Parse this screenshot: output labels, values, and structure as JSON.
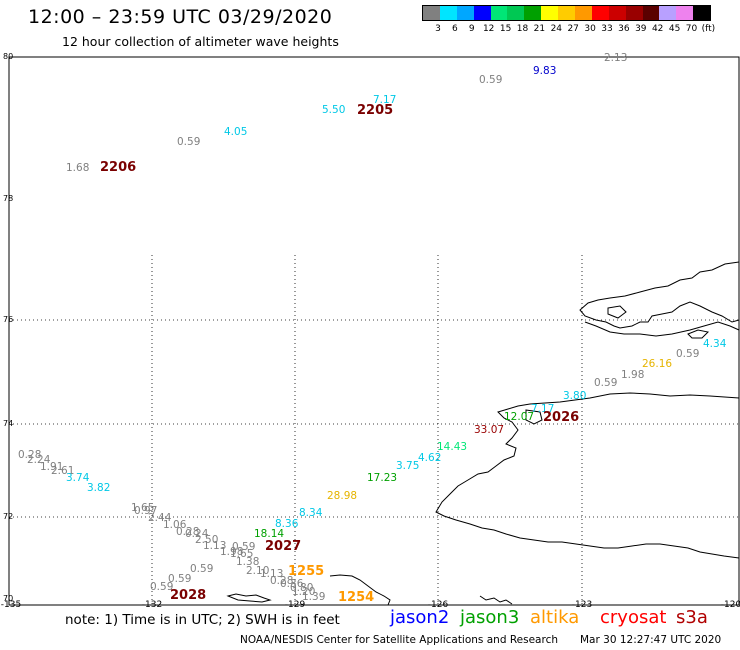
{
  "header": {
    "title": "12:00 – 23:59 UTC 03/29/2020",
    "subtitle": "12 hour collection of altimeter wave heights"
  },
  "legend": {
    "colors": [
      "#808080",
      "#00e5ff",
      "#00a7ff",
      "#0000ff",
      "#00e676",
      "#00c853",
      "#00a000",
      "#ffff00",
      "#ffcc00",
      "#ff9900",
      "#ff0000",
      "#cc0000",
      "#990000",
      "#5a0000",
      "#b8a0ff",
      "#ee82ee",
      "#000000"
    ],
    "labels": [
      "3",
      "6",
      "9",
      "12",
      "15",
      "18",
      "21",
      "24",
      "27",
      "30",
      "33",
      "36",
      "39",
      "42",
      "45",
      "70",
      "(ft)"
    ]
  },
  "axes": {
    "lat_labels": [
      "80",
      "78",
      "76",
      "74",
      "72",
      "70"
    ],
    "lon_labels": [
      "-135",
      "-132",
      "-129",
      "-126",
      "-123",
      "-120"
    ]
  },
  "wave_labels": [
    {
      "t": "2.13",
      "c": "#808080"
    },
    {
      "t": "9.83",
      "c": "#0000cc"
    },
    {
      "t": "0.59",
      "c": "#808080"
    },
    {
      "t": "7.17",
      "c": "#00c8e6"
    },
    {
      "t": "5.50",
      "c": "#00c8e6"
    },
    {
      "t": "4.05",
      "c": "#00c8e6"
    },
    {
      "t": "0.59",
      "c": "#808080"
    },
    {
      "t": "1.68",
      "c": "#808080"
    },
    {
      "t": "4.34",
      "c": "#00c8e6"
    },
    {
      "t": "0.59",
      "c": "#808080"
    },
    {
      "t": "26.16",
      "c": "#e6b400"
    },
    {
      "t": "1.98",
      "c": "#808080"
    },
    {
      "t": "0.59",
      "c": "#808080"
    },
    {
      "t": "3.80",
      "c": "#00c8e6"
    },
    {
      "t": "7.17",
      "c": "#00c8e6"
    },
    {
      "t": "12.07",
      "c": "#00a000"
    },
    {
      "t": "33.07",
      "c": "#990000"
    },
    {
      "t": "14.43",
      "c": "#00e676"
    },
    {
      "t": "4.62",
      "c": "#00c8e6"
    },
    {
      "t": "3.75",
      "c": "#00c8e6"
    },
    {
      "t": "17.23",
      "c": "#00a000"
    },
    {
      "t": "28.98",
      "c": "#e6b400"
    },
    {
      "t": "8.34",
      "c": "#00c8e6"
    },
    {
      "t": "8.36",
      "c": "#00c8e6"
    },
    {
      "t": "18.14",
      "c": "#00a000"
    },
    {
      "t": "0.28",
      "c": "#808080"
    },
    {
      "t": "2.24",
      "c": "#808080"
    },
    {
      "t": "1.91",
      "c": "#808080"
    },
    {
      "t": "2.61",
      "c": "#808080"
    },
    {
      "t": "3.74",
      "c": "#00c8e6"
    },
    {
      "t": "3.82",
      "c": "#00c8e6"
    },
    {
      "t": "1.65",
      "c": "#808080"
    },
    {
      "t": "0.97",
      "c": "#808080"
    },
    {
      "t": "2.44",
      "c": "#808080"
    },
    {
      "t": "1.06",
      "c": "#808080"
    },
    {
      "t": "0.28",
      "c": "#808080"
    },
    {
      "t": "0.24",
      "c": "#808080"
    },
    {
      "t": "2.50",
      "c": "#808080"
    },
    {
      "t": "1.13",
      "c": "#808080"
    },
    {
      "t": "0.59",
      "c": "#808080"
    },
    {
      "t": "1.98",
      "c": "#808080"
    },
    {
      "t": "1.65",
      "c": "#808080"
    },
    {
      "t": "1.38",
      "c": "#808080"
    },
    {
      "t": "2.10",
      "c": "#808080"
    },
    {
      "t": "1.13",
      "c": "#808080"
    },
    {
      "t": "0.59",
      "c": "#808080"
    },
    {
      "t": "0.59",
      "c": "#808080"
    },
    {
      "t": "0.59",
      "c": "#808080"
    },
    {
      "t": "0.28",
      "c": "#808080"
    },
    {
      "t": "0.36",
      "c": "#808080"
    },
    {
      "t": "0.80",
      "c": "#808080"
    },
    {
      "t": "1.39",
      "c": "#808080"
    },
    {
      "t": "1.20",
      "c": "#808080"
    }
  ],
  "time_labels": [
    {
      "t": "2205",
      "c": "#7a0000"
    },
    {
      "t": "2206",
      "c": "#7a0000"
    },
    {
      "t": "2026",
      "c": "#7a0000"
    },
    {
      "t": "2027",
      "c": "#7a0000"
    },
    {
      "t": "2028",
      "c": "#7a0000"
    },
    {
      "t": "1255",
      "c": "#ff9900"
    },
    {
      "t": "1254",
      "c": "#ff9900"
    }
  ],
  "note": "note: 1) Time is in UTC; 2) SWH is in feet",
  "satellites": [
    {
      "name": "jason2",
      "color": "#0000ff"
    },
    {
      "name": "jason3",
      "color": "#00a000"
    },
    {
      "name": "altika",
      "color": "#ff9900"
    },
    {
      "name": "cryosat",
      "color": "#ff0000"
    },
    {
      "name": "s3a",
      "color": "#b00000"
    }
  ],
  "footer": {
    "credit": "NOAA/NESDIS Center for Satellite Applications and Research",
    "timestamp": "Mar 30 12:27:47 UTC 2020"
  }
}
